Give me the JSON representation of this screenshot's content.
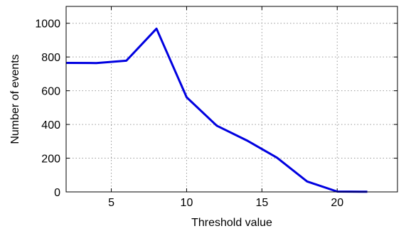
{
  "chart_data": {
    "type": "line",
    "title": "",
    "xlabel": "Threshold value",
    "ylabel": "Number of events",
    "xlim": [
      2,
      24
    ],
    "ylim": [
      0,
      1100
    ],
    "xticks": [
      5,
      10,
      15,
      20
    ],
    "yticks": [
      0,
      200,
      400,
      600,
      800,
      1000
    ],
    "grid": true,
    "series": [
      {
        "color": "#0000e0",
        "x": [
          2,
          4,
          6,
          8,
          10,
          12,
          14,
          16,
          18,
          20,
          22
        ],
        "y": [
          765,
          764,
          778,
          968,
          561,
          393,
          305,
          203,
          62,
          2,
          1
        ]
      }
    ]
  }
}
